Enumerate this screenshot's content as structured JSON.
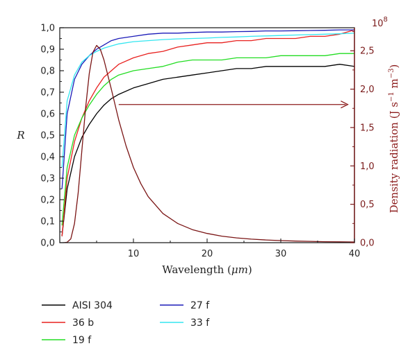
{
  "chart_data": {
    "type": "line",
    "xlabel_prefix": "Wavelength (",
    "xlabel_unit": "μm",
    "xlabel_suffix": ")",
    "ylabel": "R",
    "y2label_main": "Density radiation (J s",
    "y2label_exp1": "−1",
    "y2label_mid": " m",
    "y2label_exp2": "−3",
    "y2label_end": ")",
    "y2_multiplier": "10",
    "y2_multiplier_exp": "8",
    "xlim": [
      0,
      40
    ],
    "ylim": [
      0,
      1.0
    ],
    "y2lim": [
      0,
      2.8
    ],
    "x_ticks": [
      10,
      20,
      30,
      40
    ],
    "x_tick_labels": [
      "10",
      "20",
      "30",
      "40"
    ],
    "y_ticks": [
      0,
      0.1,
      0.2,
      0.3,
      0.4,
      0.5,
      0.6,
      0.7,
      0.8,
      0.9,
      1.0
    ],
    "y_tick_labels": [
      "0,0",
      "0,1",
      "0,2",
      "0,3",
      "0,4",
      "0,5",
      "0,6",
      "0,7",
      "0,8",
      "0,9",
      "1,0"
    ],
    "y2_ticks": [
      0,
      0.5,
      1.0,
      1.5,
      2.0,
      2.5
    ],
    "y2_tick_labels": [
      "0,0",
      "0,5",
      "1,0",
      "1,5",
      "2,0",
      "2,5"
    ],
    "series": [
      {
        "name": "AISI 304",
        "color": "#000000",
        "axis": "left",
        "points": [
          [
            0.3,
            0.03
          ],
          [
            1,
            0.25
          ],
          [
            2,
            0.4
          ],
          [
            3,
            0.49
          ],
          [
            4,
            0.55
          ],
          [
            5,
            0.6
          ],
          [
            6,
            0.64
          ],
          [
            7,
            0.67
          ],
          [
            8,
            0.69
          ],
          [
            10,
            0.72
          ],
          [
            12,
            0.74
          ],
          [
            14,
            0.76
          ],
          [
            16,
            0.77
          ],
          [
            18,
            0.78
          ],
          [
            20,
            0.79
          ],
          [
            22,
            0.8
          ],
          [
            24,
            0.81
          ],
          [
            26,
            0.81
          ],
          [
            28,
            0.82
          ],
          [
            30,
            0.82
          ],
          [
            32,
            0.82
          ],
          [
            34,
            0.82
          ],
          [
            36,
            0.82
          ],
          [
            38,
            0.83
          ],
          [
            40,
            0.82
          ]
        ]
      },
      {
        "name": "36 b",
        "color": "#e8201e",
        "axis": "left",
        "points": [
          [
            0.3,
            0.03
          ],
          [
            1,
            0.3
          ],
          [
            2,
            0.47
          ],
          [
            3,
            0.58
          ],
          [
            4,
            0.66
          ],
          [
            5,
            0.72
          ],
          [
            6,
            0.77
          ],
          [
            7,
            0.8
          ],
          [
            8,
            0.83
          ],
          [
            10,
            0.86
          ],
          [
            12,
            0.88
          ],
          [
            14,
            0.89
          ],
          [
            15,
            0.9
          ],
          [
            16,
            0.91
          ],
          [
            18,
            0.92
          ],
          [
            20,
            0.93
          ],
          [
            22,
            0.93
          ],
          [
            24,
            0.94
          ],
          [
            26,
            0.94
          ],
          [
            28,
            0.95
          ],
          [
            30,
            0.95
          ],
          [
            32,
            0.95
          ],
          [
            34,
            0.96
          ],
          [
            36,
            0.96
          ],
          [
            38,
            0.97
          ],
          [
            40,
            0.99
          ]
        ]
      },
      {
        "name": "19 f",
        "color": "#22dd22",
        "axis": "left",
        "points": [
          [
            0.3,
            0.08
          ],
          [
            1,
            0.35
          ],
          [
            2,
            0.5
          ],
          [
            3,
            0.58
          ],
          [
            4,
            0.64
          ],
          [
            5,
            0.69
          ],
          [
            6,
            0.73
          ],
          [
            7,
            0.76
          ],
          [
            8,
            0.78
          ],
          [
            10,
            0.8
          ],
          [
            12,
            0.81
          ],
          [
            14,
            0.82
          ],
          [
            15,
            0.83
          ],
          [
            16,
            0.84
          ],
          [
            18,
            0.85
          ],
          [
            20,
            0.85
          ],
          [
            22,
            0.85
          ],
          [
            24,
            0.86
          ],
          [
            26,
            0.86
          ],
          [
            28,
            0.86
          ],
          [
            30,
            0.87
          ],
          [
            32,
            0.87
          ],
          [
            34,
            0.87
          ],
          [
            36,
            0.87
          ],
          [
            38,
            0.88
          ],
          [
            40,
            0.88
          ]
        ]
      },
      {
        "name": "27 f",
        "color": "#1a1ab8",
        "axis": "left",
        "points": [
          [
            0.3,
            0.25
          ],
          [
            1,
            0.6
          ],
          [
            2,
            0.76
          ],
          [
            3,
            0.83
          ],
          [
            4,
            0.87
          ],
          [
            5,
            0.9
          ],
          [
            6,
            0.92
          ],
          [
            7,
            0.94
          ],
          [
            8,
            0.95
          ],
          [
            10,
            0.96
          ],
          [
            12,
            0.97
          ],
          [
            14,
            0.975
          ],
          [
            16,
            0.975
          ],
          [
            18,
            0.978
          ],
          [
            20,
            0.98
          ],
          [
            22,
            0.98
          ],
          [
            24,
            0.982
          ],
          [
            26,
            0.983
          ],
          [
            28,
            0.985
          ],
          [
            30,
            0.985
          ],
          [
            32,
            0.986
          ],
          [
            34,
            0.987
          ],
          [
            36,
            0.988
          ],
          [
            38,
            0.99
          ],
          [
            40,
            0.99
          ]
        ]
      },
      {
        "name": "33 f",
        "color": "#33e6f0",
        "axis": "left",
        "points": [
          [
            0.3,
            0.35
          ],
          [
            1,
            0.66
          ],
          [
            2,
            0.78
          ],
          [
            3,
            0.84
          ],
          [
            4,
            0.87
          ],
          [
            5,
            0.89
          ],
          [
            6,
            0.905
          ],
          [
            7,
            0.915
          ],
          [
            8,
            0.925
          ],
          [
            10,
            0.935
          ],
          [
            12,
            0.94
          ],
          [
            14,
            0.945
          ],
          [
            16,
            0.948
          ],
          [
            18,
            0.95
          ],
          [
            20,
            0.952
          ],
          [
            22,
            0.955
          ],
          [
            24,
            0.957
          ],
          [
            26,
            0.96
          ],
          [
            28,
            0.962
          ],
          [
            30,
            0.964
          ],
          [
            32,
            0.966
          ],
          [
            34,
            0.968
          ],
          [
            36,
            0.97
          ],
          [
            38,
            0.972
          ],
          [
            40,
            0.975
          ]
        ]
      },
      {
        "name": "",
        "color": "#7a1414",
        "axis": "right",
        "points": [
          [
            0.5,
            0.0
          ],
          [
            1.0,
            0.005
          ],
          [
            1.5,
            0.05
          ],
          [
            2.0,
            0.25
          ],
          [
            2.5,
            0.65
          ],
          [
            3.0,
            1.2
          ],
          [
            3.5,
            1.75
          ],
          [
            4.0,
            2.2
          ],
          [
            4.5,
            2.48
          ],
          [
            5.0,
            2.57
          ],
          [
            5.5,
            2.52
          ],
          [
            6.0,
            2.38
          ],
          [
            7.0,
            2.0
          ],
          [
            8.0,
            1.6
          ],
          [
            9.0,
            1.26
          ],
          [
            10.0,
            0.98
          ],
          [
            11.0,
            0.77
          ],
          [
            12.0,
            0.6
          ],
          [
            14.0,
            0.38
          ],
          [
            16.0,
            0.25
          ],
          [
            18.0,
            0.17
          ],
          [
            20.0,
            0.12
          ],
          [
            22.0,
            0.085
          ],
          [
            24.0,
            0.062
          ],
          [
            26.0,
            0.046
          ],
          [
            28.0,
            0.035
          ],
          [
            30.0,
            0.027
          ],
          [
            32.0,
            0.021
          ],
          [
            34.0,
            0.017
          ],
          [
            36.0,
            0.013
          ],
          [
            38.0,
            0.011
          ],
          [
            40.0,
            0.009
          ]
        ]
      }
    ],
    "legend_items": [
      {
        "label": "AISI 304",
        "color": "#000000"
      },
      {
        "label": "36 b",
        "color": "#e8201e"
      },
      {
        "label": "19 f",
        "color": "#22dd22"
      },
      {
        "label": "27 f",
        "color": "#1a1ab8"
      },
      {
        "label": "33 f",
        "color": "#33e6f0"
      }
    ],
    "arrow": {
      "from_x": 8,
      "to_x": 39,
      "y2": 1.8,
      "color": "#8b1a1a"
    }
  }
}
